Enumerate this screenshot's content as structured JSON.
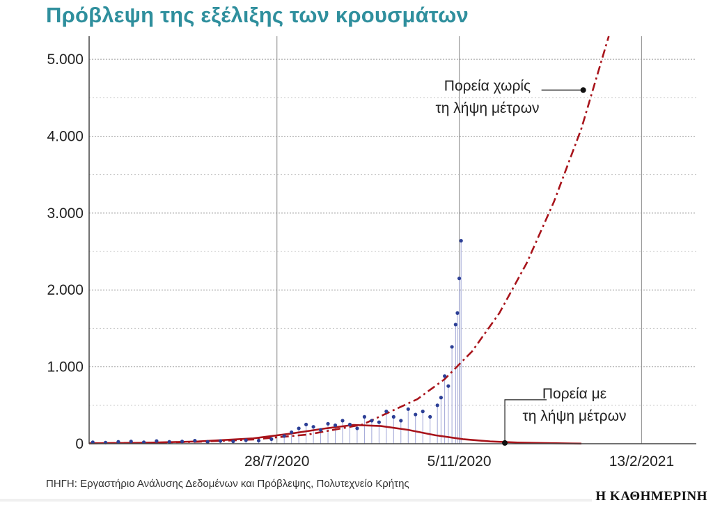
{
  "title": "Πρόβλεψη της εξέλιξης των κρουσμάτων",
  "source": "ΠΗΓΗ: Εργαστήριο Ανάλυσης Δεδομένων και Πρόβλεψης, Πολυτεχνείο Κρήτης",
  "brand": "Η ΚΑΘΗΜΕΡΙΝΗ",
  "colors": {
    "title": "#2f8f9d",
    "forecast": "#a8141b",
    "observed_points": "#2c3f96",
    "observed_stems": "#9fa5d6",
    "grid": "#9a9a9a"
  },
  "chart_data": {
    "type": "line",
    "title": "Πρόβλεψη της εξέλιξης των κρουσμάτων",
    "xlabel": "",
    "ylabel": "",
    "x_ticks": [
      "28/7/2020",
      "5/11/2020",
      "13/2/2021"
    ],
    "y_ticks": [
      "0",
      "1.000",
      "2.000",
      "3.000",
      "4.000",
      "5.000"
    ],
    "xlim": [
      "2020-04-16",
      "2021-03-15"
    ],
    "ylim": [
      0,
      5300
    ],
    "grid": true,
    "annotations": [
      {
        "lines": [
          "Πορεία χωρίς",
          "τη λήψη μέτρων"
        ],
        "x": "2021-01-12",
        "y": 4600
      },
      {
        "lines": [
          "Πορεία με",
          "τη λήψη μέτρων"
        ],
        "x": "2020-11-30",
        "y": 10
      }
    ],
    "series": [
      {
        "name": "Πορεία χωρίς τη λήψη μέτρων",
        "style": "dashdot",
        "x": [
          "2020-04-16",
          "2020-05-16",
          "2020-06-15",
          "2020-07-15",
          "2020-08-14",
          "2020-09-13",
          "2020-10-13",
          "2020-10-28",
          "2020-11-12",
          "2020-11-27",
          "2020-12-12",
          "2020-12-27",
          "2021-01-11",
          "2021-01-26"
        ],
        "y": [
          5,
          12,
          25,
          55,
          120,
          250,
          580,
          840,
          1200,
          1700,
          2350,
          3150,
          4100,
          5300
        ]
      },
      {
        "name": "Πορεία με τη λήψη μέτρων",
        "style": "solid",
        "x": [
          "2020-04-16",
          "2020-05-16",
          "2020-06-15",
          "2020-07-15",
          "2020-08-04",
          "2020-08-24",
          "2020-09-08",
          "2020-09-23",
          "2020-10-08",
          "2020-10-23",
          "2020-11-07",
          "2020-11-22",
          "2020-12-07",
          "2020-12-22",
          "2021-01-06",
          "2021-01-11"
        ],
        "y": [
          5,
          12,
          30,
          70,
          130,
          200,
          245,
          230,
          180,
          110,
          60,
          30,
          15,
          8,
          3,
          2
        ]
      },
      {
        "name": "Κρούσματα",
        "style": "stem",
        "x": [
          "2020-04-18",
          "2020-04-25",
          "2020-05-02",
          "2020-05-09",
          "2020-05-16",
          "2020-05-23",
          "2020-05-30",
          "2020-06-06",
          "2020-06-13",
          "2020-06-20",
          "2020-06-27",
          "2020-07-04",
          "2020-07-11",
          "2020-07-18",
          "2020-07-25",
          "2020-08-01",
          "2020-08-05",
          "2020-08-09",
          "2020-08-13",
          "2020-08-17",
          "2020-08-21",
          "2020-08-25",
          "2020-08-29",
          "2020-09-02",
          "2020-09-06",
          "2020-09-10",
          "2020-09-14",
          "2020-09-18",
          "2020-09-22",
          "2020-09-26",
          "2020-09-30",
          "2020-10-04",
          "2020-10-08",
          "2020-10-12",
          "2020-10-16",
          "2020-10-20",
          "2020-10-24",
          "2020-10-26",
          "2020-10-28",
          "2020-10-30",
          "2020-11-01",
          "2020-11-03",
          "2020-11-04",
          "2020-11-05",
          "2020-11-06"
        ],
        "y": [
          20,
          15,
          25,
          30,
          20,
          35,
          25,
          30,
          40,
          25,
          35,
          30,
          45,
          40,
          60,
          100,
          150,
          200,
          250,
          220,
          180,
          260,
          240,
          300,
          250,
          200,
          350,
          300,
          280,
          420,
          350,
          300,
          450,
          380,
          420,
          350,
          500,
          600,
          880,
          750,
          1260,
          1550,
          1700,
          2150,
          2640
        ]
      }
    ]
  }
}
